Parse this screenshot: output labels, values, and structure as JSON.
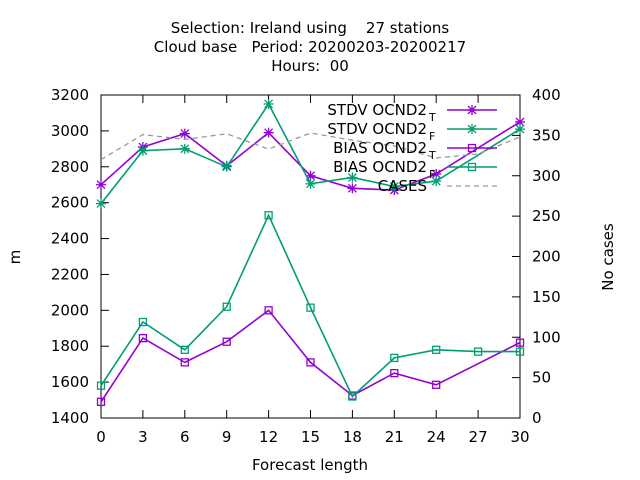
{
  "chart_data": {
    "type": "line",
    "title_lines": [
      "Selection: Ireland using    27 stations",
      "Cloud base   Period: 20200203-20200217",
      "Hours:  00"
    ],
    "xlabel": "Forecast length",
    "ylabel": "m",
    "y2label": "No cases",
    "xlim": [
      0,
      30
    ],
    "ylim": [
      1400,
      3200
    ],
    "y2lim": [
      0,
      400
    ],
    "xticks": [
      0,
      3,
      6,
      9,
      12,
      15,
      18,
      21,
      24,
      27,
      30
    ],
    "yticks": [
      1400,
      1600,
      1800,
      2000,
      2200,
      2400,
      2600,
      2800,
      3000,
      3200
    ],
    "y2ticks": [
      0,
      50,
      100,
      150,
      200,
      250,
      300,
      350,
      400
    ],
    "legend_position": "top-right",
    "grid": false,
    "series": [
      {
        "name": "STDV OCND2",
        "subscript": "T",
        "axis": "y",
        "color": "#9400d3",
        "marker": "star",
        "dash": "",
        "x": [
          0,
          3,
          6,
          9,
          12,
          15,
          18,
          21,
          24,
          30
        ],
        "y": [
          2700,
          2910,
          2985,
          2805,
          2990,
          2750,
          2680,
          2670,
          2760,
          3050
        ]
      },
      {
        "name": "STDV OCND2",
        "subscript": "F",
        "axis": "y",
        "color": "#009e73",
        "marker": "star",
        "dash": "",
        "x": [
          0,
          3,
          6,
          9,
          12,
          15,
          18,
          21,
          24,
          30
        ],
        "y": [
          2595,
          2890,
          2900,
          2800,
          3150,
          2705,
          2740,
          2690,
          2720,
          3010
        ]
      },
      {
        "name": "BIAS OCND2",
        "subscript": "T",
        "axis": "y",
        "color": "#9400d3",
        "marker": "square",
        "dash": "",
        "x": [
          0,
          3,
          6,
          9,
          12,
          15,
          18,
          21,
          24,
          30
        ],
        "y": [
          1490,
          1845,
          1710,
          1825,
          2000,
          1710,
          1525,
          1650,
          1585,
          1820
        ]
      },
      {
        "name": "BIAS OCND2",
        "subscript": "F",
        "axis": "y",
        "color": "#009e73",
        "marker": "square",
        "dash": "",
        "x": [
          0,
          3,
          6,
          9,
          12,
          15,
          18,
          21,
          24,
          27,
          30
        ],
        "y": [
          1580,
          1935,
          1780,
          2020,
          2530,
          2015,
          1520,
          1735,
          1780,
          1770,
          1770
        ]
      },
      {
        "name": "CASES",
        "subscript": "",
        "axis": "y2",
        "color": "#999999",
        "marker": "none",
        "dash": "5,4",
        "x": [
          0,
          3,
          6,
          9,
          12,
          15,
          18,
          21,
          24,
          27,
          30
        ],
        "y": [
          320,
          351,
          345,
          352,
          333,
          353,
          344,
          337,
          322,
          327,
          348
        ]
      }
    ]
  }
}
